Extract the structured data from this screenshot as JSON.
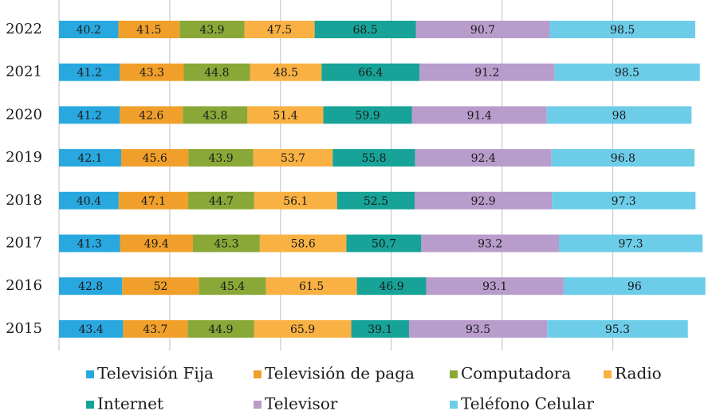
{
  "chart_data": {
    "type": "stacked-bar-horizontal",
    "categories": [
      "2022",
      "2021",
      "2020",
      "2019",
      "2018",
      "2017",
      "2016",
      "2015"
    ],
    "series": [
      {
        "name": "Televisión  Fija",
        "color": "#29a8e0",
        "values": [
          40.2,
          41.2,
          41.2,
          42.1,
          40.4,
          41.3,
          42.8,
          43.4
        ]
      },
      {
        "name": "Televisión de paga",
        "color": "#f0a02a",
        "values": [
          41.5,
          43.3,
          42.6,
          45.6,
          47.1,
          49.4,
          52,
          43.7
        ]
      },
      {
        "name": "Computadora",
        "color": "#8aa838",
        "values": [
          43.9,
          44.8,
          43.8,
          43.9,
          44.7,
          45.3,
          45.4,
          44.9
        ]
      },
      {
        "name": "Radio",
        "color": "#f9b143",
        "values": [
          47.5,
          48.5,
          51.4,
          53.7,
          56.1,
          58.6,
          61.5,
          65.9
        ]
      },
      {
        "name": "Internet",
        "color": "#17a398",
        "values": [
          68.5,
          66.4,
          59.9,
          55.8,
          52.5,
          50.7,
          46.9,
          39.1
        ]
      },
      {
        "name": "Televisor",
        "color": "#b89ccb",
        "values": [
          90.7,
          91.2,
          91.4,
          92.4,
          92.9,
          93.2,
          93.1,
          93.5
        ]
      },
      {
        "name": "Teléfono Celular",
        "color": "#6dcde8",
        "values": [
          98.5,
          98.5,
          98,
          96.8,
          97.3,
          97.3,
          96,
          95.3
        ]
      }
    ],
    "xlim": [
      0,
      440
    ],
    "xticks": [
      0,
      75,
      150,
      225,
      300,
      375
    ],
    "grid": true,
    "legend": "bottom"
  }
}
